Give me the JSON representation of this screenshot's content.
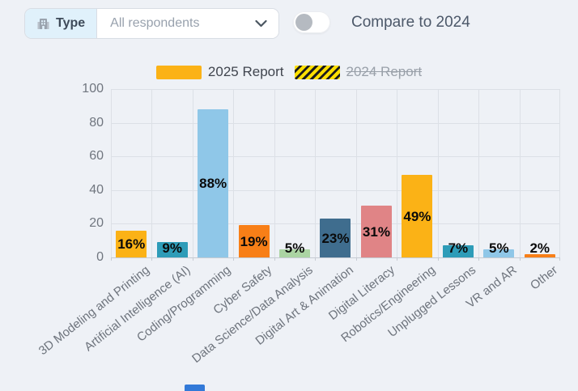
{
  "header": {
    "filter_label": "Type",
    "filter_value": "All respondents",
    "filter_icon": "building-icon",
    "dropdown_icon": "chevron-down-icon",
    "toggle_label": "Compare to 2024",
    "toggle_state": "off"
  },
  "legend": [
    {
      "label": "2025 Report",
      "color": "#FBB216",
      "hatched": false,
      "struck": false
    },
    {
      "label": "2024 Report",
      "color": "#FFE000",
      "hatched": true,
      "struck": true
    }
  ],
  "chart_data": {
    "type": "bar",
    "title": "",
    "xlabel": "",
    "ylabel": "",
    "categories": [
      "3D Modeling and Printing",
      "Artificial Intelligence (AI)",
      "Coding/Programming",
      "Cyber Safety",
      "Data Science/Data Analysis",
      "Digital Art & Animation",
      "Digital Literacy",
      "Robotics/Engineering",
      "Unplugged Lessons",
      "VR and AR",
      "Other"
    ],
    "series": [
      {
        "name": "2025 Report",
        "values": [
          16,
          9,
          88,
          19,
          5,
          23,
          31,
          49,
          7,
          5,
          2
        ]
      }
    ],
    "value_suffix": "%",
    "bar_colors": [
      "#FBB216",
      "#2E9CB8",
      "#8FC7E8",
      "#F87F17",
      "#ABD4A3",
      "#3F6D8E",
      "#E08486",
      "#FBB216",
      "#2E9CB8",
      "#8FC7E8",
      "#F87F17"
    ],
    "ylim": [
      0,
      100
    ],
    "yticks": [
      0,
      20,
      40,
      60,
      80,
      100
    ],
    "grid": true,
    "legend_position": "top-center"
  },
  "colors": {
    "background": "#EEF1F6",
    "gridline": "#DCE0E6",
    "axis": "#C6CBD3",
    "chip_background": "#E0F1FB",
    "accent_2025": "#FBB216",
    "accent_2024": "#FFE000"
  }
}
